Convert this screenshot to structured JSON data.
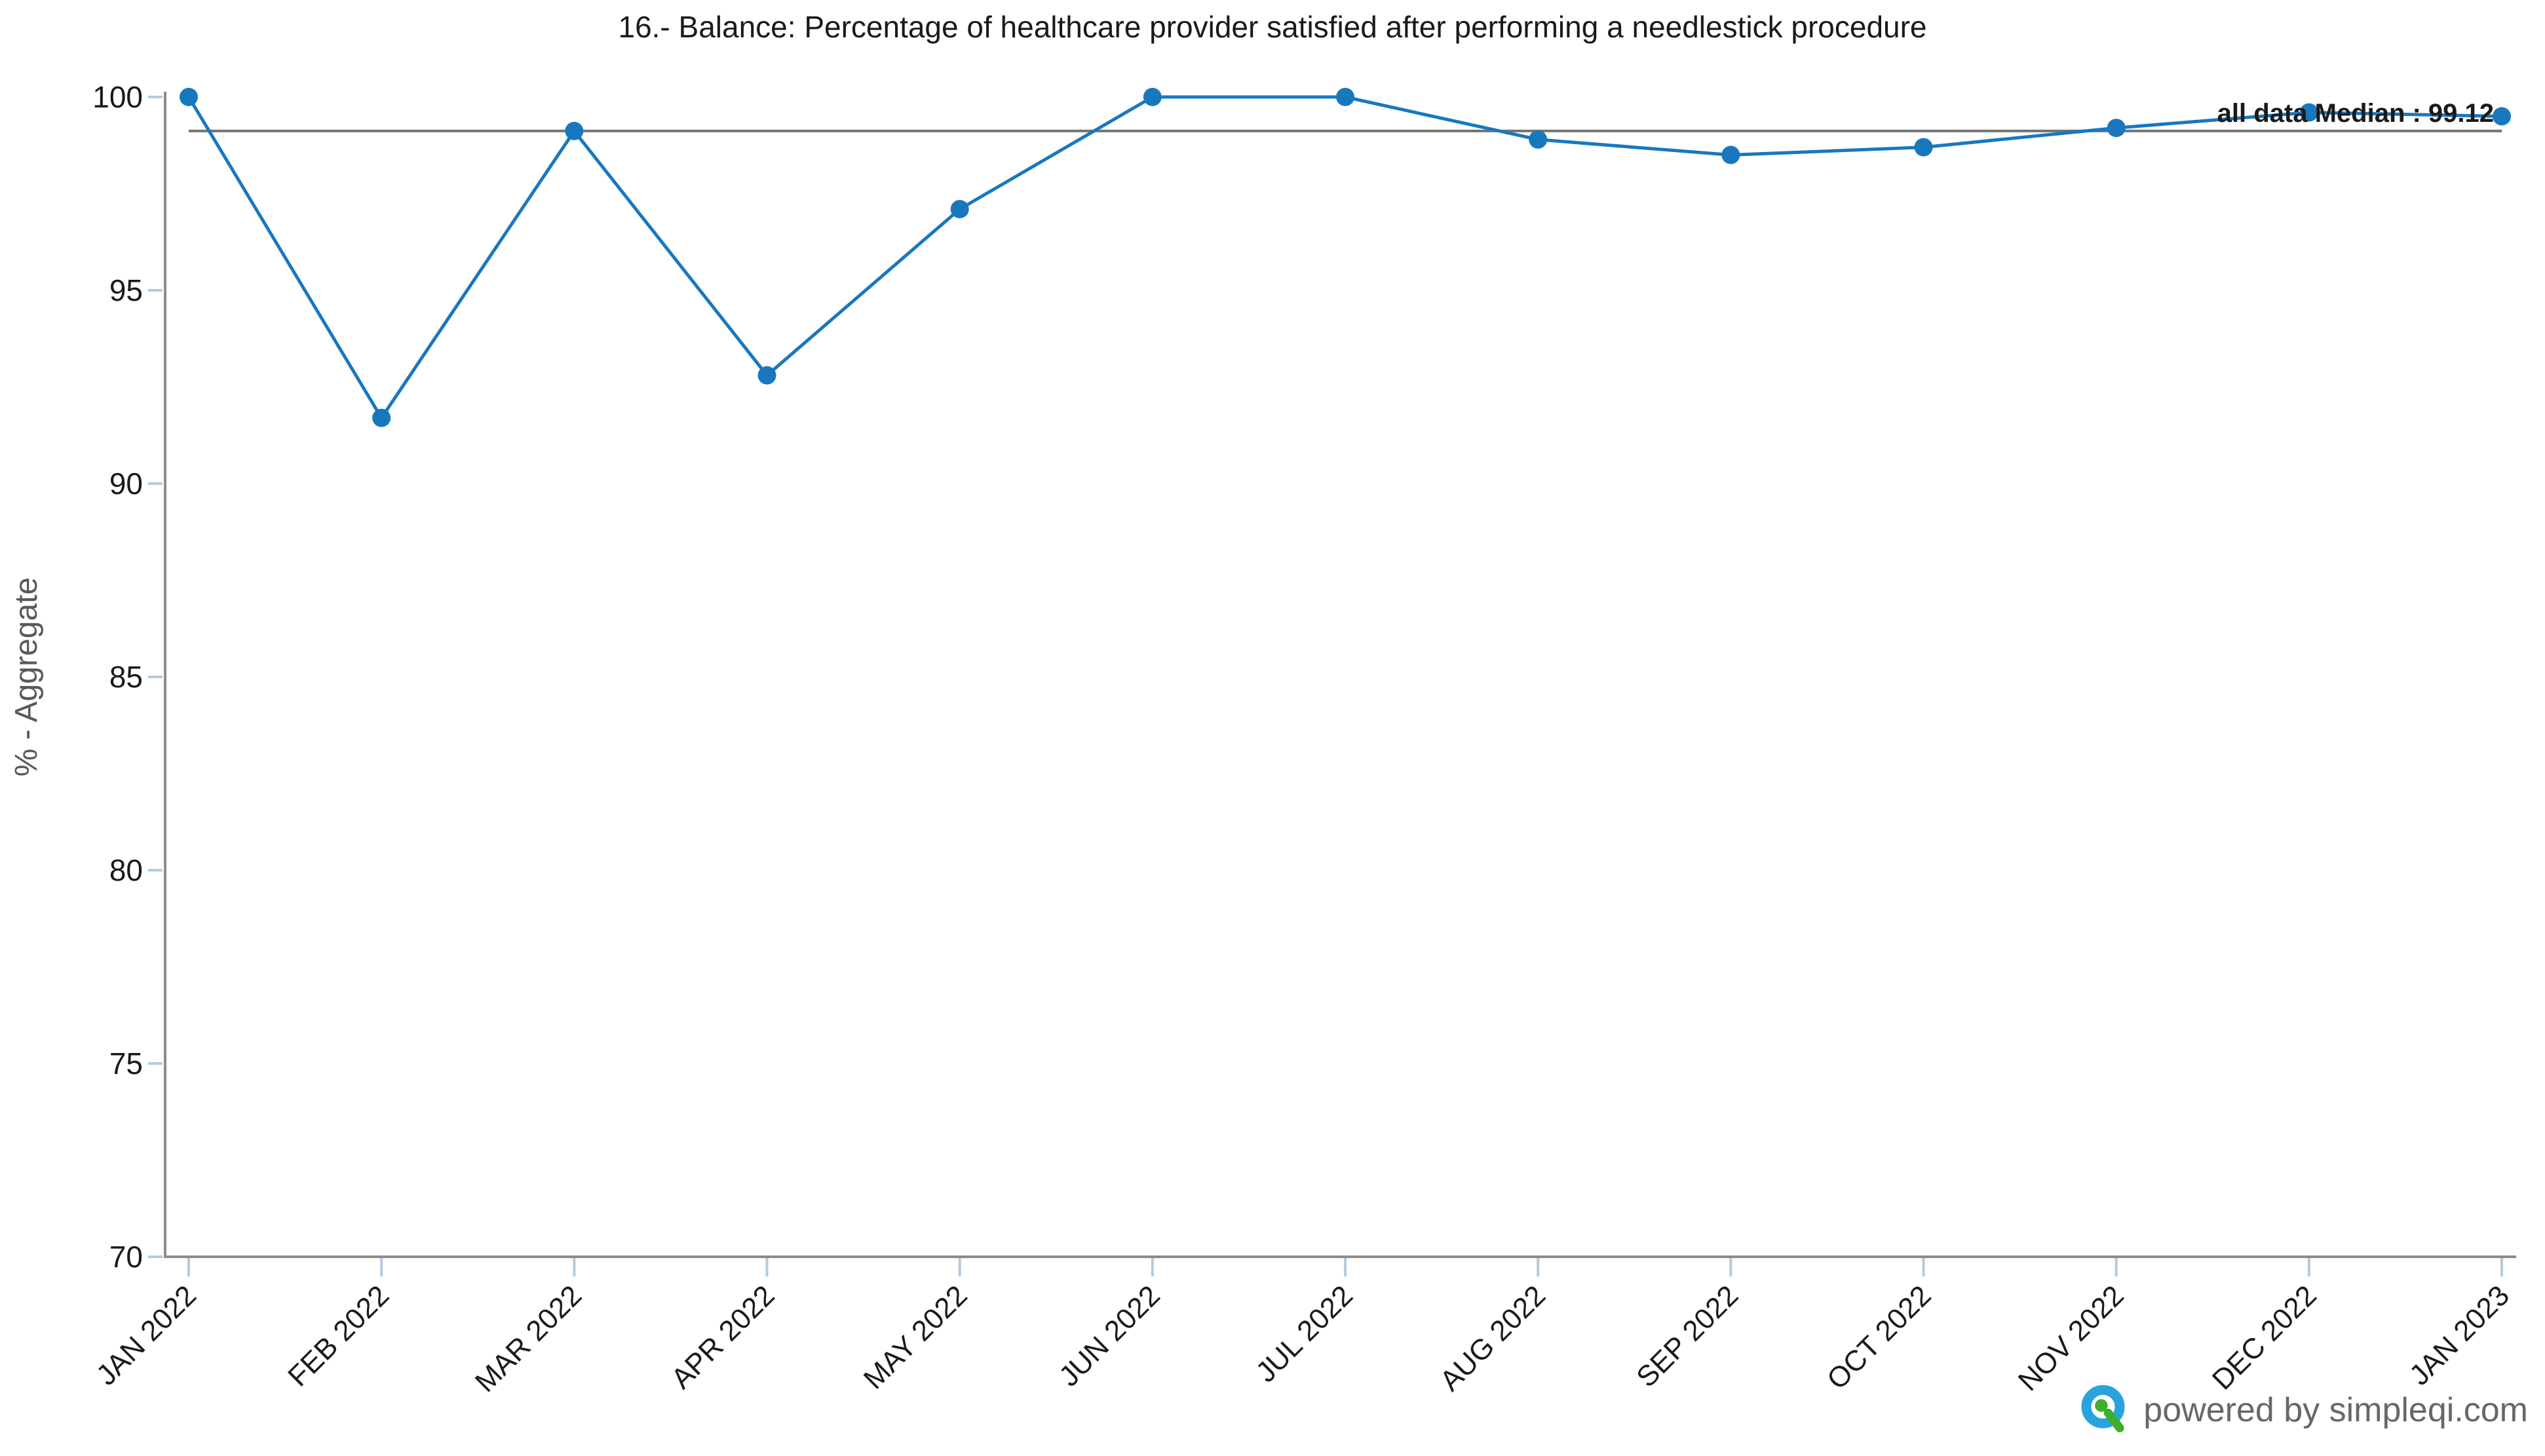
{
  "title": "16.- Balance: Percentage of healthcare provider satisfied after performing a needlestick procedure",
  "chart_data": {
    "type": "line",
    "x": [
      "JAN 2022",
      "FEB 2022",
      "MAR 2022",
      "APR 2022",
      "MAY 2022",
      "JUN 2022",
      "JUL 2022",
      "AUG 2022",
      "SEP 2022",
      "OCT 2022",
      "NOV 2022",
      "DEC 2022",
      "JAN 2023"
    ],
    "series": [
      {
        "name": "% - Aggregate",
        "values": [
          100,
          91.7,
          99.12,
          92.8,
          97.1,
          100,
          100,
          98.9,
          98.5,
          98.7,
          99.2,
          99.6,
          99.5
        ]
      }
    ],
    "title": "16.- Balance: Percentage of healthcare provider satisfied after performing a needlestick procedure",
    "xlabel": "",
    "ylabel": "% - Aggregate",
    "ylim": [
      70,
      100
    ],
    "yticks": [
      70,
      75,
      80,
      85,
      90,
      95,
      100
    ],
    "grid": false,
    "legend_position": "none",
    "median_annotation": {
      "label": "all data Median : 99.12",
      "value": 99.12
    },
    "colors": {
      "line": "#1878be",
      "point": "#1878be",
      "median_line": "#747474",
      "axis": "#8c8c8c",
      "tick": "#b3cbe2",
      "tick_label": "#1a1a1a",
      "axis_title": "#595959",
      "title": "#1a1a1a"
    }
  },
  "footer": {
    "powered_by": "powered by simpleqi.com",
    "logo": "simpleqi-q-logo",
    "logo_colors": {
      "ring": "#29a3dd",
      "accent": "#3fae2a"
    },
    "text_color": "#676767"
  }
}
